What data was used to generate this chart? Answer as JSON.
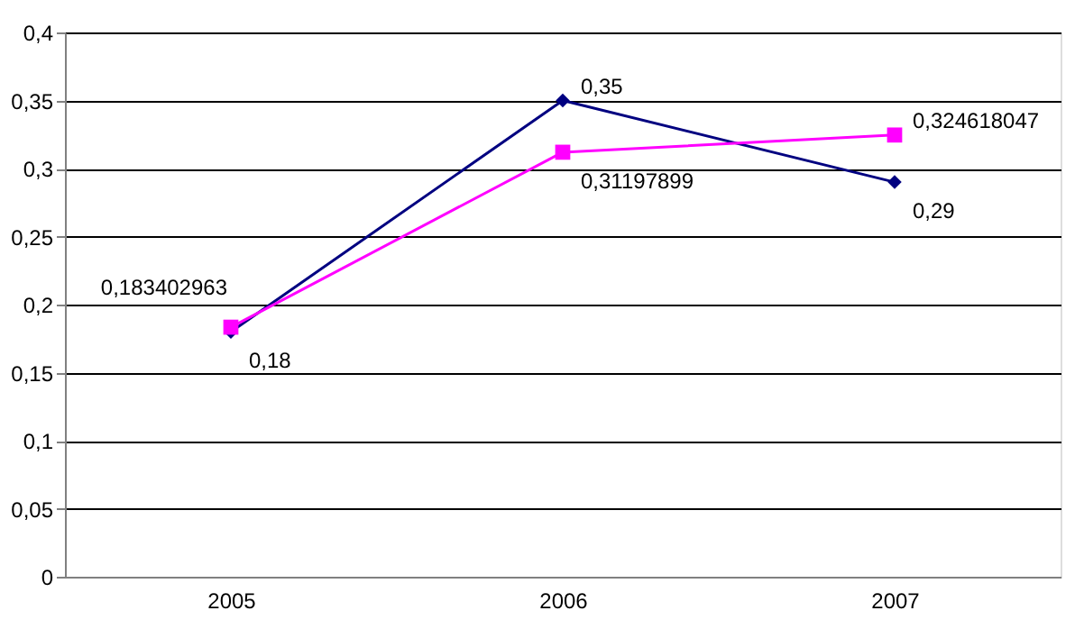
{
  "chart_data": {
    "type": "line",
    "categories": [
      "2005",
      "2006",
      "2007"
    ],
    "series": [
      {
        "color": "#000080",
        "marker": "diamond",
        "values": [
          0.18,
          0.35,
          0.29
        ],
        "value_labels": [
          "0,18",
          "0,35",
          "0,29"
        ]
      },
      {
        "color": "#ff00ff",
        "marker": "square",
        "values": [
          0.183402963,
          0.31197899,
          0.324618047
        ],
        "value_labels": [
          "0,183402963",
          "0,31197899",
          "0,324618047"
        ]
      }
    ],
    "ylim": [
      0,
      0.4
    ],
    "yticks": [
      {
        "value": 0,
        "label": "0"
      },
      {
        "value": 0.05,
        "label": "0,05"
      },
      {
        "value": 0.1,
        "label": "0,1"
      },
      {
        "value": 0.15,
        "label": "0,15"
      },
      {
        "value": 0.2,
        "label": "0,2"
      },
      {
        "value": 0.25,
        "label": "0,25"
      },
      {
        "value": 0.3,
        "label": "0,3"
      },
      {
        "value": 0.35,
        "label": "0,35"
      },
      {
        "value": 0.4,
        "label": "0,4"
      }
    ],
    "grid": "y",
    "line_style": "solid"
  }
}
